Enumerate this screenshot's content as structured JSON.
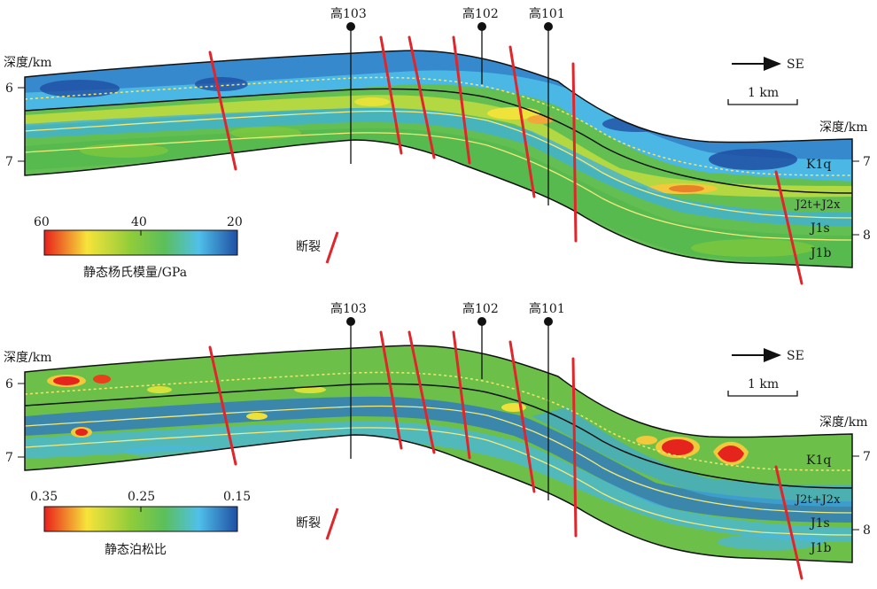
{
  "panels": [
    {
      "id": "top",
      "depth_label": "深度/km",
      "left_ticks": [
        "6",
        "7"
      ],
      "right_depth_label": "深度/km",
      "right_ticks": [
        "7",
        "8"
      ],
      "wells": [
        "高103",
        "高102",
        "高101"
      ],
      "direction": "SE",
      "scale": "1 km",
      "strata": [
        "K1q",
        "J2t+J2x",
        "J1s",
        "J1b"
      ],
      "colorbar": {
        "ticks": [
          "60",
          "40",
          "20"
        ],
        "title": "静态杨氏模量/GPa"
      },
      "fault_legend": "断裂"
    },
    {
      "id": "bottom",
      "depth_label": "深度/km",
      "left_ticks": [
        "6",
        "7"
      ],
      "right_depth_label": "深度/km",
      "right_ticks": [
        "7",
        "8"
      ],
      "wells": [
        "高103",
        "高102",
        "高101"
      ],
      "direction": "SE",
      "scale": "1 km",
      "strata": [
        "K1q",
        "J2t+J2x",
        "J1s",
        "J1b"
      ],
      "colorbar": {
        "ticks": [
          "0.35",
          "0.25",
          "0.15"
        ],
        "title": "静态泊松比"
      },
      "fault_legend": "断裂"
    }
  ],
  "colors": {
    "high": "#e8201c",
    "mid_high": "#f7e33a",
    "mid": "#6cbf3a",
    "mid_low": "#53c2e8",
    "low": "#1f4fa3",
    "fault": "#e0262b"
  }
}
